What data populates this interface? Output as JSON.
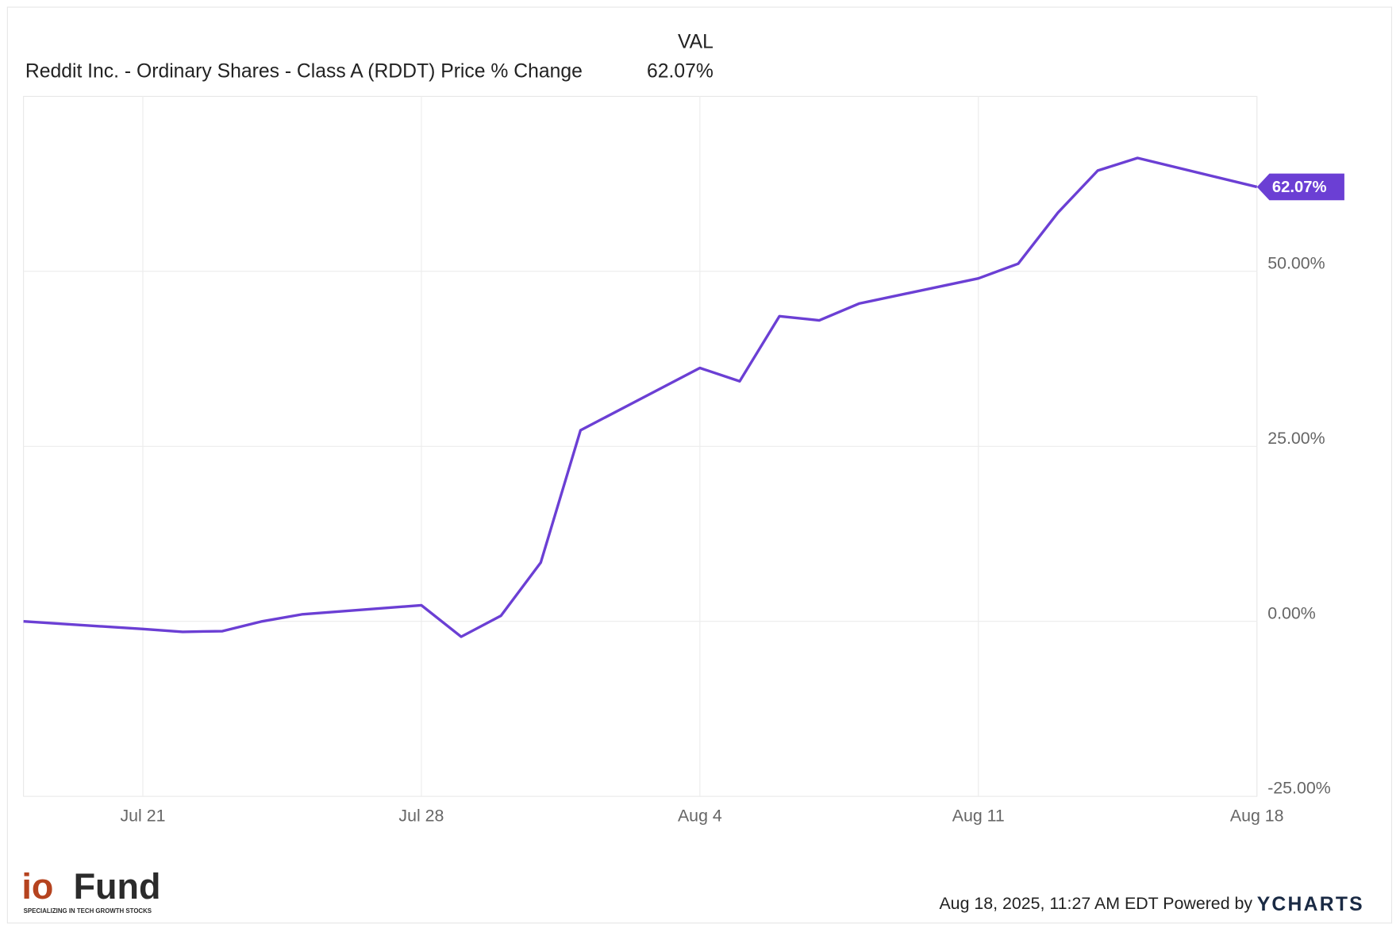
{
  "chart_data": {
    "type": "line",
    "column_header": "VAL",
    "x": [
      "Jul 18",
      "Jul 21",
      "Jul 22",
      "Jul 23",
      "Jul 24",
      "Jul 25",
      "Jul 28",
      "Jul 29",
      "Jul 30",
      "Jul 31",
      "Aug 1",
      "Aug 4",
      "Aug 5",
      "Aug 6",
      "Aug 7",
      "Aug 8",
      "Aug 11",
      "Aug 12",
      "Aug 13",
      "Aug 14",
      "Aug 15",
      "Aug 18"
    ],
    "series": [
      {
        "name": "Reddit Inc. - Ordinary Shares - Class A (RDDT) Price % Change",
        "color": "#6b3fd4",
        "values": [
          0,
          -1.1,
          -1.5,
          -1.4,
          0,
          1.0,
          2.3,
          -2.2,
          0.8,
          8.4,
          27.3,
          36.2,
          34.3,
          43.6,
          43.0,
          45.4,
          49.0,
          51.1,
          58.4,
          64.4,
          66.2,
          62.07
        ],
        "end_label": "62.07%"
      }
    ],
    "xlim": [
      "Jul 18",
      "Aug 18"
    ],
    "xticks": [
      "Jul 21",
      "Jul 28",
      "Aug 4",
      "Aug 11",
      "Aug 18"
    ],
    "ylim": [
      -25,
      75
    ],
    "yticks": [
      {
        "value": -25,
        "label": "-25.00%"
      },
      {
        "value": 0,
        "label": "0.00%"
      },
      {
        "value": 25,
        "label": "25.00%"
      },
      {
        "value": 50,
        "label": "50.00%"
      }
    ],
    "grid": true
  },
  "footer": {
    "timestamp": "Aug 18, 2025, 11:27 AM EDT",
    "powered_by": "Powered by",
    "brand": "YCHARTS"
  },
  "logo": {
    "mark": "io",
    "name": "Fund",
    "tagline": "SPECIALIZING IN TECH GROWTH STOCKS"
  }
}
